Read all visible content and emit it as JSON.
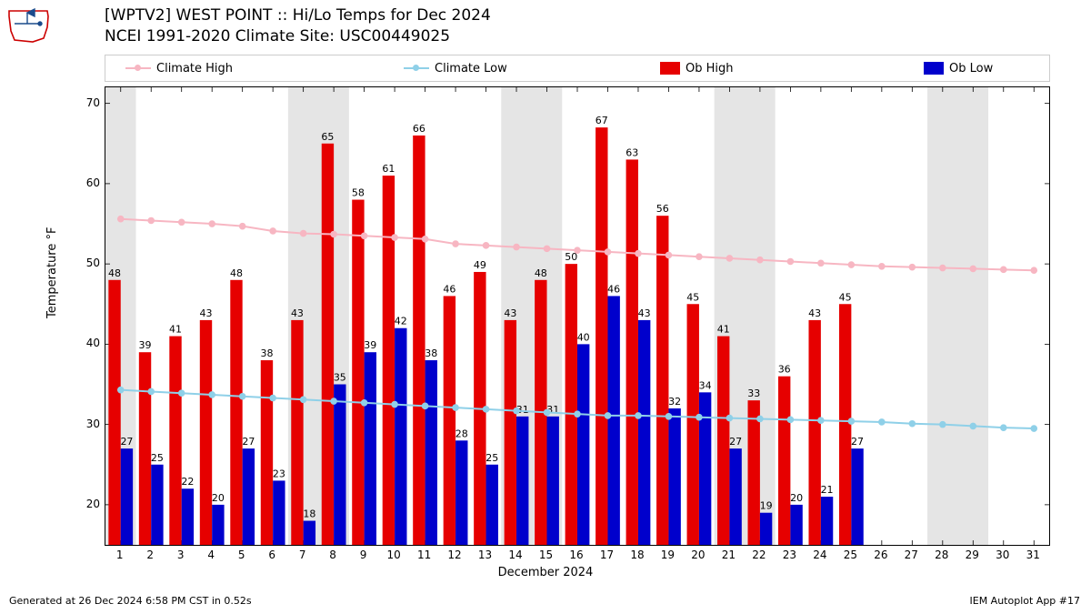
{
  "logo": {
    "main_color": "#cc0000",
    "accent_color": "#1a4b8c"
  },
  "title_line1": "[WPTV2] WEST POINT :: Hi/Lo Temps for Dec 2024",
  "title_line2": "NCEI 1991-2020 Climate Site: USC00449025",
  "footer_left": "Generated at 26 Dec 2024 6:58 PM CST in 0.52s",
  "footer_right": "IEM Autoplot App #17",
  "ylabel": "Temperature °F",
  "xlabel": "December 2024",
  "legend": {
    "climate_high": {
      "label": "Climate High",
      "color": "#f7b6c2"
    },
    "climate_low": {
      "label": "Climate Low",
      "color": "#8fd0e8"
    },
    "ob_high": {
      "label": "Ob High",
      "color": "#e60000"
    },
    "ob_low": {
      "label": "Ob Low",
      "color": "#0000cc"
    }
  },
  "chart": {
    "type": "bar+line",
    "x_days": 31,
    "ylim": [
      15,
      72
    ],
    "yticks": [
      20,
      30,
      40,
      50,
      60,
      70
    ],
    "background_color": "#ffffff",
    "shade_color": "#e5e5e5",
    "weekend_shading": {
      "comment": "day ranges (1-based) to shade; bands represent weekends",
      "ranges": [
        [
          1,
          1
        ],
        [
          7,
          8
        ],
        [
          14,
          15
        ],
        [
          21,
          22
        ],
        [
          28,
          29
        ]
      ]
    },
    "climate_high": {
      "color": "#f7b6c2",
      "values": [
        55.6,
        55.4,
        55.2,
        55.0,
        54.7,
        54.1,
        53.8,
        53.7,
        53.5,
        53.3,
        53.1,
        52.5,
        52.3,
        52.1,
        51.9,
        51.7,
        51.5,
        51.3,
        51.1,
        50.9,
        50.7,
        50.5,
        50.3,
        50.1,
        49.9,
        49.7,
        49.6,
        49.5,
        49.4,
        49.3,
        49.2
      ]
    },
    "climate_low": {
      "color": "#8fd0e8",
      "values": [
        34.3,
        34.1,
        33.9,
        33.7,
        33.5,
        33.3,
        33.1,
        32.9,
        32.7,
        32.5,
        32.3,
        32.1,
        31.9,
        31.7,
        31.5,
        31.3,
        31.1,
        31.1,
        31.0,
        30.9,
        30.8,
        30.7,
        30.6,
        30.5,
        30.4,
        30.3,
        30.1,
        30.0,
        29.8,
        29.6,
        29.5
      ]
    },
    "ob_high": {
      "color": "#e60000",
      "values": [
        48,
        39,
        41,
        43,
        48,
        38,
        43,
        65,
        58,
        61,
        66,
        46,
        49,
        43,
        48,
        50,
        67,
        63,
        56,
        45,
        41,
        33,
        36,
        43,
        45
      ]
    },
    "ob_low": {
      "color": "#0000cc",
      "values": [
        27,
        25,
        22,
        20,
        27,
        23,
        18,
        35,
        39,
        42,
        38,
        28,
        25,
        31,
        31,
        40,
        46,
        43,
        32,
        34,
        27,
        19,
        20,
        21,
        27
      ]
    },
    "bar_width_rel": 0.4
  }
}
